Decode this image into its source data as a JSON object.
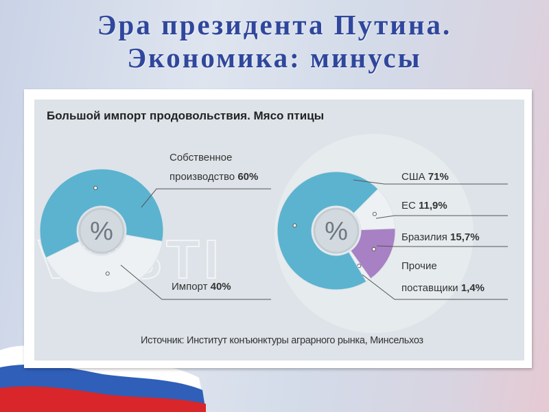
{
  "slide": {
    "title_line1": "Эра президента Путина.",
    "title_line2": "Экономика: минусы"
  },
  "colors": {
    "title": "#2f479c",
    "blue": "#5bb3d0",
    "white": "#eef1f4",
    "purple": "#a880c4",
    "panel": "#dde3e8"
  },
  "chart_data": [
    {
      "type": "pie",
      "subtype": "donut",
      "title": "Большой импорт продовольствия. Мясо птицы",
      "center_label": "%",
      "slices": [
        {
          "label_line1": "Собственное",
          "label_line2": "производство",
          "value": 60,
          "value_label": "60%",
          "color": "#5bb3d0"
        },
        {
          "label_line1": "",
          "label_line2": "Импорт",
          "value": 40,
          "value_label": "40%",
          "color": "#eef1f4"
        }
      ]
    },
    {
      "type": "pie",
      "subtype": "donut",
      "center_label": "%",
      "slices": [
        {
          "label_line1": "",
          "label_line2": "ЕС",
          "value": 11.9,
          "value_label": "11,9%",
          "color": "#eef1f4"
        },
        {
          "label_line1": "",
          "label_line2": "Бразилия",
          "value": 15.7,
          "value_label": "15,7%",
          "color": "#a880c4"
        },
        {
          "label_line1": "Прочие",
          "label_line2": "поставщики",
          "value": 1.4,
          "value_label": "1,4%",
          "color": "#eef1f4"
        },
        {
          "label_line1": "",
          "label_line2": "США",
          "value": 71,
          "value_label": "71%",
          "color": "#5bb3d0"
        }
      ]
    }
  ],
  "source": "Источник: Институт конъюнктуры аграрного рынка, Минсельхоз"
}
